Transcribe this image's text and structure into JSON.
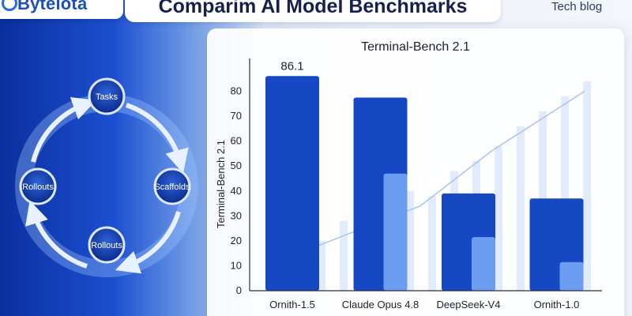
{
  "header": {
    "brand": "Bytelota",
    "brand_icon": "ring-logo-icon",
    "headline": "Comparim AI Model Benchmarks",
    "tag": "Tech blog"
  },
  "cycle_diagram": {
    "nodes": [
      {
        "label": "Tasks"
      },
      {
        "label": "Scaffolds"
      },
      {
        "label": "Rollouts"
      },
      {
        "label": "Rollouts"
      }
    ]
  },
  "colors": {
    "bar_dark": "#1748c4",
    "bar_light": "#6b9cf0",
    "accent": "#1d4fb8"
  },
  "chart_data": {
    "type": "bar",
    "title": "Terminal-Bench 2.1",
    "ylabel": "Terminal-Bench 2.1",
    "xlabel": "",
    "categories": [
      "Ornith-1.5",
      "Claude Opus 4.8",
      "DeepSeek-V4",
      "Ornith-1.0"
    ],
    "series": [
      {
        "values": [
          86.1,
          77.5,
          39.0,
          37.0
        ]
      },
      {
        "values": [
          null,
          47.0,
          21.5,
          11.5
        ]
      }
    ],
    "data_labels": [
      "86.1"
    ],
    "yticks": [
      "0",
      "10",
      "20",
      "30",
      "40",
      "50",
      "60",
      "70",
      "80"
    ],
    "ylim": [
      0,
      90
    ],
    "grid": false,
    "legend": "none"
  }
}
